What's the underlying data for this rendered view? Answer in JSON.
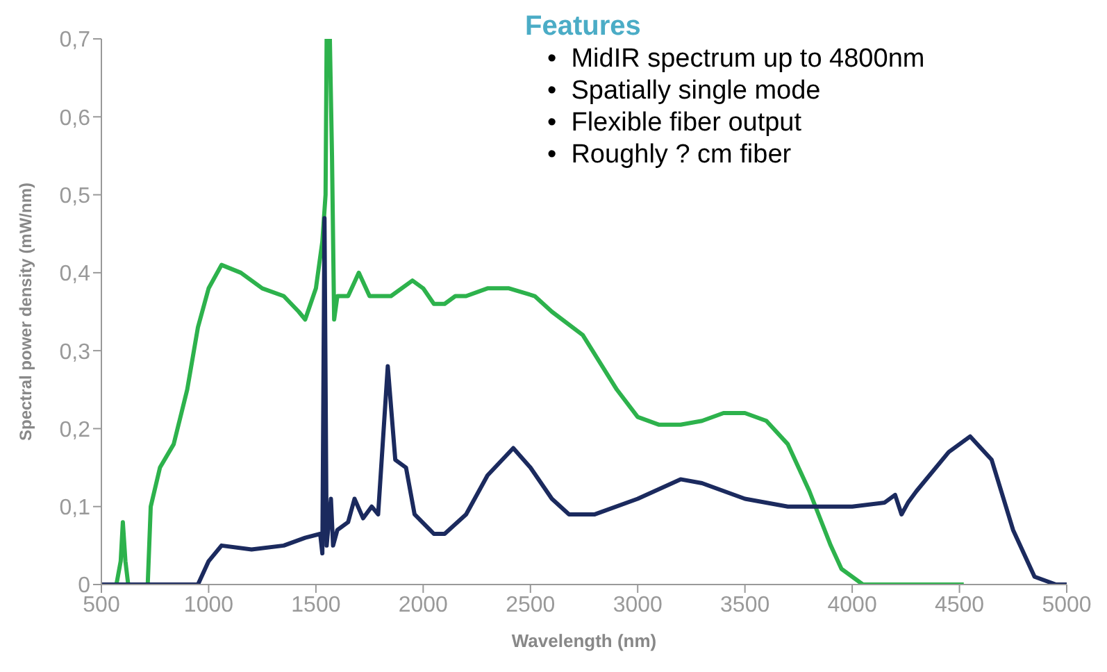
{
  "chart_data": {
    "type": "line",
    "xlabel": "Wavelength (nm)",
    "ylabel": "Spectral power density (mW/nm)",
    "xlim": [
      500,
      5000
    ],
    "xticks": [
      500,
      1000,
      1500,
      2000,
      2500,
      3000,
      3500,
      4000,
      4500,
      5000
    ],
    "ylim": [
      0,
      0.7
    ],
    "yticks": [
      0,
      {
        "value": 0.1,
        "label": "0,1"
      },
      {
        "value": 0.2,
        "label": "0,2"
      },
      {
        "value": 0.3,
        "label": "0,3"
      },
      {
        "value": 0.4,
        "label": "0,4"
      },
      {
        "value": 0.5,
        "label": "0,5"
      },
      {
        "value": 0.6,
        "label": "0,6"
      },
      {
        "value": 0.7,
        "label": "0,7"
      }
    ],
    "grid": false,
    "legend": false,
    "marker": "none",
    "line_style": "solid",
    "series": [
      {
        "color": "#2db24c",
        "x": [
          500,
          570,
          590,
          600,
          612,
          625,
          700,
          716,
          730,
          773,
          837,
          900,
          950,
          1000,
          1060,
          1150,
          1250,
          1350,
          1420,
          1450,
          1500,
          1530,
          1545,
          1550,
          1565,
          1575,
          1585,
          1600,
          1650,
          1700,
          1750,
          1850,
          1950,
          2000,
          2050,
          2100,
          2150,
          2200,
          2300,
          2400,
          2520,
          2600,
          2744,
          2903,
          3000,
          3100,
          3200,
          3300,
          3400,
          3500,
          3600,
          3700,
          3800,
          3900,
          3950,
          4050,
          4520
        ],
        "values": [
          0,
          0,
          0.03,
          0.08,
          0.03,
          0,
          0,
          0,
          0.1,
          0.15,
          0.18,
          0.25,
          0.33,
          0.38,
          0.41,
          0.4,
          0.38,
          0.37,
          0.35,
          0.34,
          0.38,
          0.44,
          0.5,
          0.7,
          0.7,
          0.55,
          0.34,
          0.37,
          0.37,
          0.4,
          0.37,
          0.37,
          0.39,
          0.38,
          0.36,
          0.36,
          0.37,
          0.37,
          0.38,
          0.38,
          0.37,
          0.35,
          0.32,
          0.25,
          0.215,
          0.205,
          0.205,
          0.21,
          0.22,
          0.22,
          0.21,
          0.18,
          0.12,
          0.05,
          0.02,
          0,
          0
        ]
      },
      {
        "color": "#1b2a5e",
        "x": [
          500,
          950,
          1000,
          1060,
          1200,
          1350,
          1450,
          1520,
          1530,
          1540,
          1550,
          1570,
          1580,
          1600,
          1650,
          1680,
          1720,
          1760,
          1790,
          1835,
          1870,
          1920,
          1960,
          2050,
          2100,
          2200,
          2300,
          2420,
          2500,
          2600,
          2680,
          2800,
          3000,
          3200,
          3300,
          3500,
          3700,
          4000,
          4150,
          4200,
          4230,
          4260,
          4300,
          4450,
          4550,
          4650,
          4750,
          4850,
          4950,
          5000
        ],
        "values": [
          0,
          0,
          0.03,
          0.05,
          0.045,
          0.05,
          0.06,
          0.065,
          0.04,
          0.47,
          0.05,
          0.11,
          0.05,
          0.07,
          0.08,
          0.11,
          0.085,
          0.1,
          0.09,
          0.28,
          0.16,
          0.15,
          0.09,
          0.065,
          0.065,
          0.09,
          0.14,
          0.175,
          0.15,
          0.11,
          0.09,
          0.09,
          0.11,
          0.135,
          0.13,
          0.11,
          0.1,
          0.1,
          0.105,
          0.115,
          0.09,
          0.105,
          0.12,
          0.17,
          0.19,
          0.16,
          0.07,
          0.01,
          0,
          0
        ]
      }
    ],
    "annotations": [
      "Features",
      "•  MidIR spectrum up to 4800nm",
      "•  Spatially single mode",
      "•  Flexible fiber output",
      "•  Roughly ? cm fiber"
    ]
  }
}
